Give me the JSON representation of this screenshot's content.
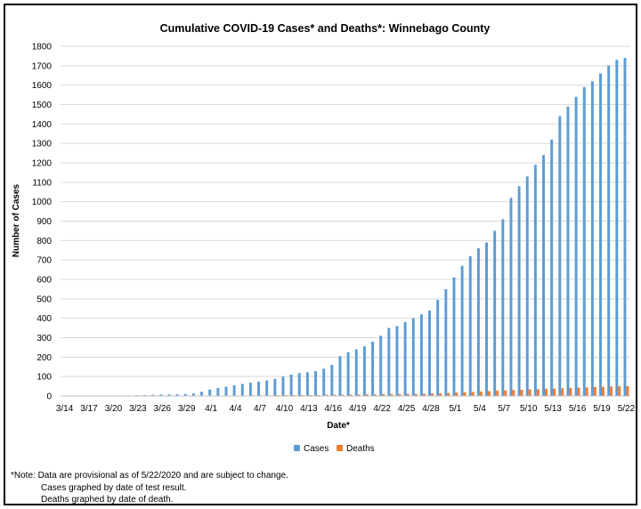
{
  "chart_data": {
    "type": "bar",
    "title": "Cumulative COVID-19 Cases* and Deaths*: Winnebago County",
    "xlabel": "Date*",
    "ylabel": "Number of Cases",
    "ylim": [
      0,
      1800
    ],
    "yticks": [
      0,
      100,
      200,
      300,
      400,
      500,
      600,
      700,
      800,
      900,
      1000,
      1100,
      1200,
      1300,
      1400,
      1500,
      1600,
      1700,
      1800
    ],
    "grid": true,
    "legend_position": "bottom",
    "categories": [
      "3/14",
      "3/15",
      "3/16",
      "3/17",
      "3/18",
      "3/19",
      "3/20",
      "3/21",
      "3/22",
      "3/23",
      "3/24",
      "3/25",
      "3/26",
      "3/27",
      "3/28",
      "3/29",
      "3/30",
      "3/31",
      "4/1",
      "4/2",
      "4/3",
      "4/4",
      "4/5",
      "4/6",
      "4/7",
      "4/8",
      "4/9",
      "4/10",
      "4/11",
      "4/12",
      "4/13",
      "4/14",
      "4/15",
      "4/16",
      "4/17",
      "4/18",
      "4/19",
      "4/20",
      "4/21",
      "4/22",
      "4/23",
      "4/24",
      "4/25",
      "4/26",
      "4/27",
      "4/28",
      "4/29",
      "4/30",
      "5/1",
      "5/2",
      "5/3",
      "5/4",
      "5/5",
      "5/6",
      "5/7",
      "5/8",
      "5/9",
      "5/10",
      "5/11",
      "5/12",
      "5/13",
      "5/14",
      "5/15",
      "5/16",
      "5/17",
      "5/18",
      "5/19",
      "5/20",
      "5/21",
      "5/22"
    ],
    "tick_labels": [
      "3/14",
      "3/17",
      "3/20",
      "3/23",
      "3/26",
      "3/29",
      "4/1",
      "4/4",
      "4/7",
      "4/10",
      "4/13",
      "4/16",
      "4/19",
      "4/22",
      "4/25",
      "4/28",
      "5/1",
      "5/4",
      "5/7",
      "5/10",
      "5/13",
      "5/16",
      "5/19",
      "5/22"
    ],
    "series": [
      {
        "name": "Cases",
        "color": "#5b9bd5",
        "values": [
          1,
          1,
          1,
          2,
          2,
          2,
          2,
          3,
          3,
          4,
          5,
          6,
          7,
          8,
          9,
          10,
          13,
          22,
          33,
          41,
          48,
          55,
          62,
          68,
          74,
          80,
          88,
          100,
          110,
          118,
          122,
          128,
          140,
          160,
          205,
          225,
          240,
          255,
          280,
          310,
          350,
          360,
          380,
          400,
          420,
          440,
          495,
          550,
          610,
          670,
          720,
          760,
          790,
          850,
          910,
          1020,
          1080,
          1130,
          1190,
          1240,
          1320,
          1440,
          1490,
          1540,
          1590,
          1620,
          1660,
          1700,
          1730,
          1740
        ]
      },
      {
        "name": "Deaths",
        "color": "#ed7d31",
        "values": [
          0,
          0,
          0,
          0,
          0,
          0,
          0,
          0,
          0,
          0,
          0,
          0,
          0,
          0,
          0,
          0,
          0,
          1,
          1,
          1,
          2,
          2,
          2,
          3,
          3,
          3,
          4,
          4,
          4,
          5,
          5,
          5,
          6,
          6,
          6,
          7,
          7,
          8,
          8,
          9,
          10,
          10,
          11,
          11,
          12,
          13,
          14,
          15,
          17,
          19,
          21,
          23,
          25,
          27,
          29,
          31,
          32,
          34,
          35,
          37,
          38,
          40,
          41,
          43,
          44,
          46,
          47,
          49,
          50,
          51
        ]
      }
    ]
  },
  "notes": {
    "line1": "*Note: Data are provisional as of 5/22/2020 and are subject to change.",
    "line2": "Cases graphed by date of test result.",
    "line3": "Deaths graphed by date of death."
  }
}
